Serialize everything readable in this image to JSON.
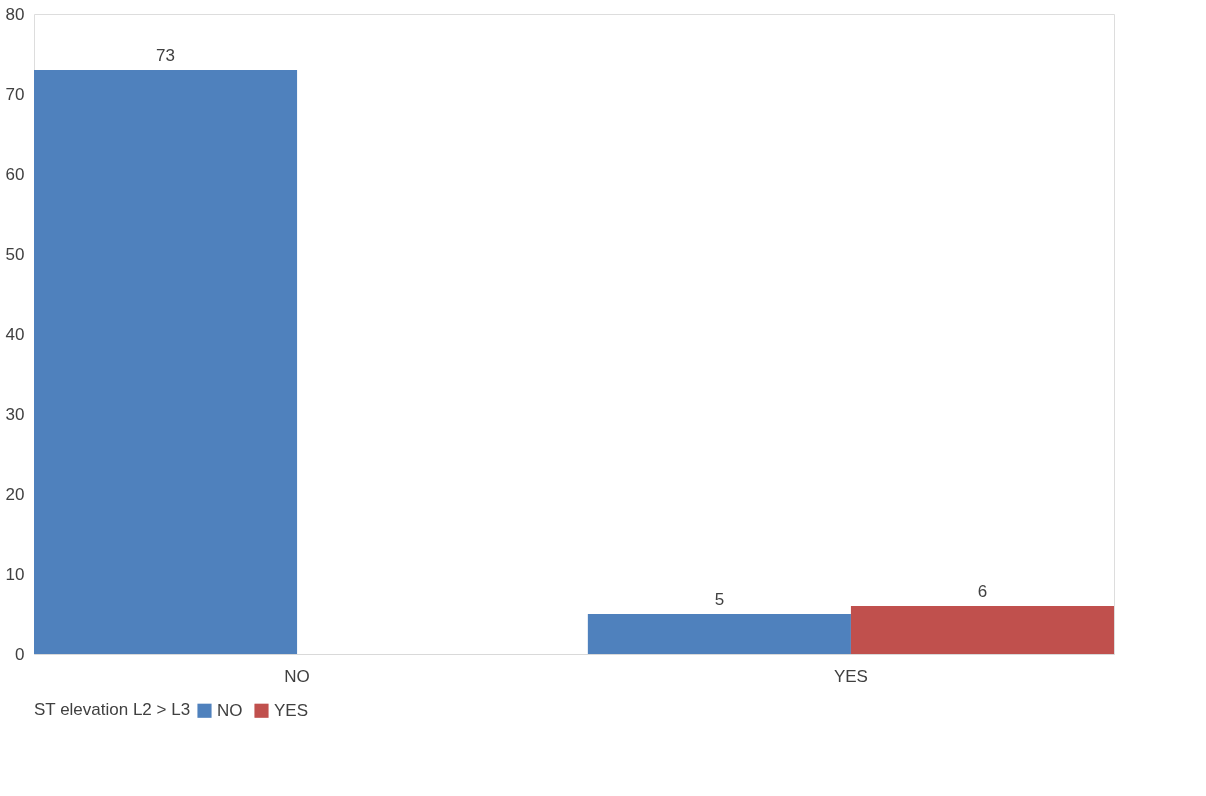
{
  "chart_data": {
    "type": "bar",
    "categories": [
      "NO",
      "YES"
    ],
    "legend_title": "ST elevation L2 > L3",
    "series": [
      {
        "name": "NO",
        "color": "#4f81bd",
        "values": [
          73,
          5
        ]
      },
      {
        "name": "YES",
        "color": "#c0504d",
        "values": [
          null,
          6
        ]
      }
    ],
    "ylim": [
      0,
      80
    ],
    "yticks": [
      0,
      10,
      20,
      30,
      40,
      50,
      60,
      70,
      80
    ],
    "data_labels": true,
    "legend": "bottom",
    "grid": false
  }
}
